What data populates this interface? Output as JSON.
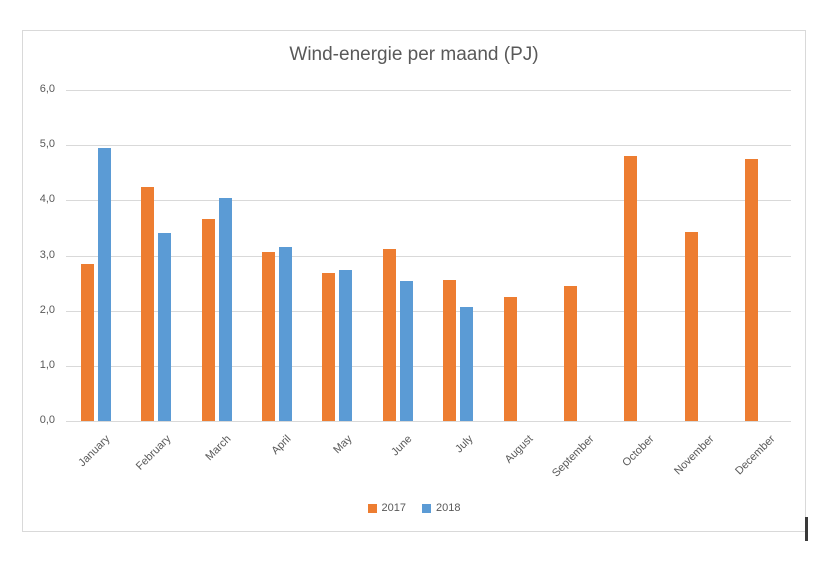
{
  "chart_data": {
    "type": "bar",
    "title": "Wind-energie per maand (PJ)",
    "categories": [
      "January",
      "February",
      "March",
      "April",
      "May",
      "June",
      "July",
      "August",
      "September",
      "October",
      "November",
      "December"
    ],
    "series": [
      {
        "name": "2017",
        "color": "#ED7D31",
        "values": [
          2.85,
          4.25,
          3.66,
          3.06,
          2.68,
          3.11,
          2.55,
          2.24,
          2.44,
          4.8,
          3.43,
          4.75
        ]
      },
      {
        "name": "2018",
        "color": "#5B9BD5",
        "values": [
          4.94,
          3.41,
          4.04,
          3.16,
          2.73,
          2.53,
          2.06,
          null,
          null,
          null,
          null,
          null
        ]
      }
    ],
    "y_axis": {
      "min": 0,
      "max": 6,
      "step": 1,
      "tick_labels": [
        "0,0",
        "1,0",
        "2,0",
        "3,0",
        "4,0",
        "5,0",
        "6,0"
      ]
    },
    "x_axis": {
      "label_rotation_deg": 45
    },
    "grid": true,
    "legend_position": "bottom",
    "ylabel": "",
    "xlabel": ""
  },
  "colors": {
    "text": "#595959",
    "gridline": "#D9D9D9",
    "frame_border": "#D9D9D9",
    "background": "#FFFFFF"
  }
}
